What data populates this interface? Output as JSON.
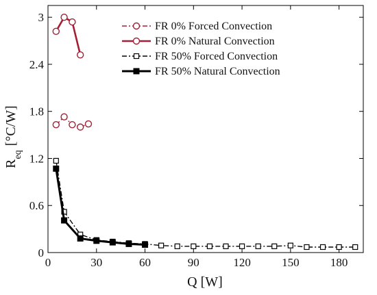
{
  "chart_data": {
    "type": "line",
    "xlabel": "Q [W]",
    "ylabel_main": "R",
    "ylabel_sub": "eq",
    "ylabel_unit": "[°C/W]",
    "xlim": [
      0,
      195
    ],
    "ylim": [
      0,
      3.15
    ],
    "xticks": [
      0,
      30,
      60,
      90,
      120,
      150,
      180
    ],
    "yticks": [
      0,
      0.6,
      1.2,
      1.8,
      2.4,
      3
    ],
    "ytick_labels": [
      "0",
      "0.6",
      "1.2",
      "1.8",
      "2.4",
      "3"
    ],
    "grid": false,
    "legend_position": "top-center",
    "series": [
      {
        "name": "FR 0% Forced Convection",
        "color": "#a31f34",
        "line": "dashdot",
        "marker": "circle-open",
        "x": [
          5,
          10,
          15,
          20,
          25
        ],
        "y": [
          1.63,
          1.73,
          1.63,
          1.6,
          1.64
        ]
      },
      {
        "name": "FR 0% Natural Convection",
        "color": "#a31f34",
        "line": "solid",
        "marker": "circle-open",
        "x": [
          5,
          10,
          15,
          20
        ],
        "y": [
          2.82,
          3.0,
          2.94,
          2.52
        ]
      },
      {
        "name": "FR 50% Forced Convection",
        "color": "#000000",
        "line": "dashdot",
        "marker": "square-open",
        "x": [
          5,
          10,
          20,
          30,
          40,
          50,
          60,
          70,
          80,
          90,
          100,
          110,
          120,
          130,
          140,
          150,
          160,
          170,
          180,
          190
        ],
        "y": [
          1.17,
          0.52,
          0.23,
          0.16,
          0.14,
          0.12,
          0.11,
          0.09,
          0.08,
          0.08,
          0.08,
          0.08,
          0.08,
          0.08,
          0.08,
          0.09,
          0.07,
          0.07,
          0.07,
          0.07
        ]
      },
      {
        "name": "FR 50% Natural Convection",
        "color": "#000000",
        "line": "solid-thick",
        "marker": "square-filled",
        "x": [
          5,
          10,
          20,
          30,
          40,
          50,
          60
        ],
        "y": [
          1.07,
          0.41,
          0.18,
          0.15,
          0.13,
          0.11,
          0.1
        ]
      }
    ]
  }
}
